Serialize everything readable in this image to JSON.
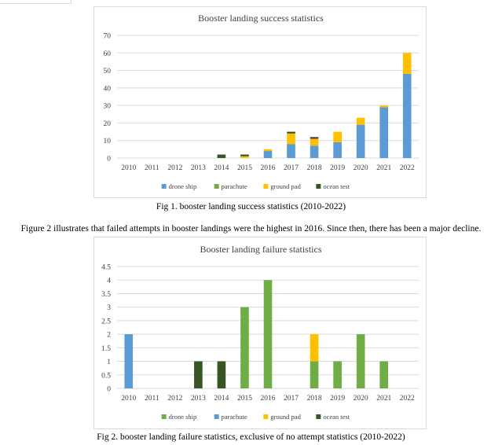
{
  "chart_data": [
    {
      "type": "bar",
      "stacked": true,
      "title": "Booster landing success statistics",
      "categories": [
        "2010",
        "2011",
        "2012",
        "2013",
        "2014",
        "2015",
        "2016",
        "2017",
        "2018",
        "2019",
        "2020",
        "2021",
        "2022"
      ],
      "ylim": [
        0,
        70
      ],
      "yticks": [
        0,
        10,
        20,
        30,
        40,
        50,
        60,
        70
      ],
      "grid": true,
      "legend": "bottom",
      "series": [
        {
          "name": "drone ship",
          "color": "#5b9bd5",
          "values": [
            0,
            0,
            0,
            0,
            0,
            0,
            4,
            8,
            7,
            9,
            19,
            29,
            48
          ]
        },
        {
          "name": "parachute",
          "color": "#70ad47",
          "values": [
            0,
            0,
            0,
            0,
            0,
            0,
            0,
            0,
            0,
            0,
            0,
            0,
            0
          ]
        },
        {
          "name": "ground pad",
          "color": "#ffc000",
          "values": [
            0,
            0,
            0,
            0,
            0,
            1,
            1,
            6,
            4,
            6,
            4,
            1,
            12
          ]
        },
        {
          "name": "ocean test",
          "color": "#375623",
          "values": [
            0,
            0,
            0,
            0,
            2,
            1,
            0,
            1,
            1,
            0,
            0,
            0,
            0
          ]
        }
      ]
    },
    {
      "type": "bar",
      "stacked": true,
      "title": "Booster landing failure statistics",
      "categories": [
        "2010",
        "2011",
        "2012",
        "2013",
        "2014",
        "2015",
        "2016",
        "2017",
        "2018",
        "2019",
        "2020",
        "2021",
        "2022"
      ],
      "ylim": [
        0,
        4.5
      ],
      "yticks": [
        0,
        0.5,
        1,
        1.5,
        2,
        2.5,
        3,
        3.5,
        4,
        4.5
      ],
      "grid": true,
      "legend": "bottom",
      "series": [
        {
          "name": "drone ship",
          "color": "#70ad47",
          "values": [
            0,
            0,
            0,
            0,
            0,
            3,
            4,
            0,
            1,
            1,
            2,
            1,
            0
          ]
        },
        {
          "name": "parachute",
          "color": "#5b9bd5",
          "values": [
            2,
            0,
            0,
            0,
            0,
            0,
            0,
            0,
            0,
            0,
            0,
            0,
            0
          ]
        },
        {
          "name": "ground pad",
          "color": "#ffc000",
          "values": [
            0,
            0,
            0,
            0,
            0,
            0,
            0,
            0,
            1,
            0,
            0,
            0,
            0
          ]
        },
        {
          "name": "ocean test",
          "color": "#375623",
          "values": [
            0,
            0,
            0,
            1,
            1,
            0,
            0,
            0,
            0,
            0,
            0,
            0,
            0
          ]
        }
      ]
    }
  ],
  "captions": {
    "fig1": "Fig 1. booster landing success statistics (2010-2022)",
    "paragraph": "Figure 2 illustrates that failed attempts in booster landings were the highest in 2016. Since then, there has been a major decline.",
    "fig2": "Fig 2. booster landing failure statistics, exclusive of no attempt statistics (2010-2022)"
  }
}
